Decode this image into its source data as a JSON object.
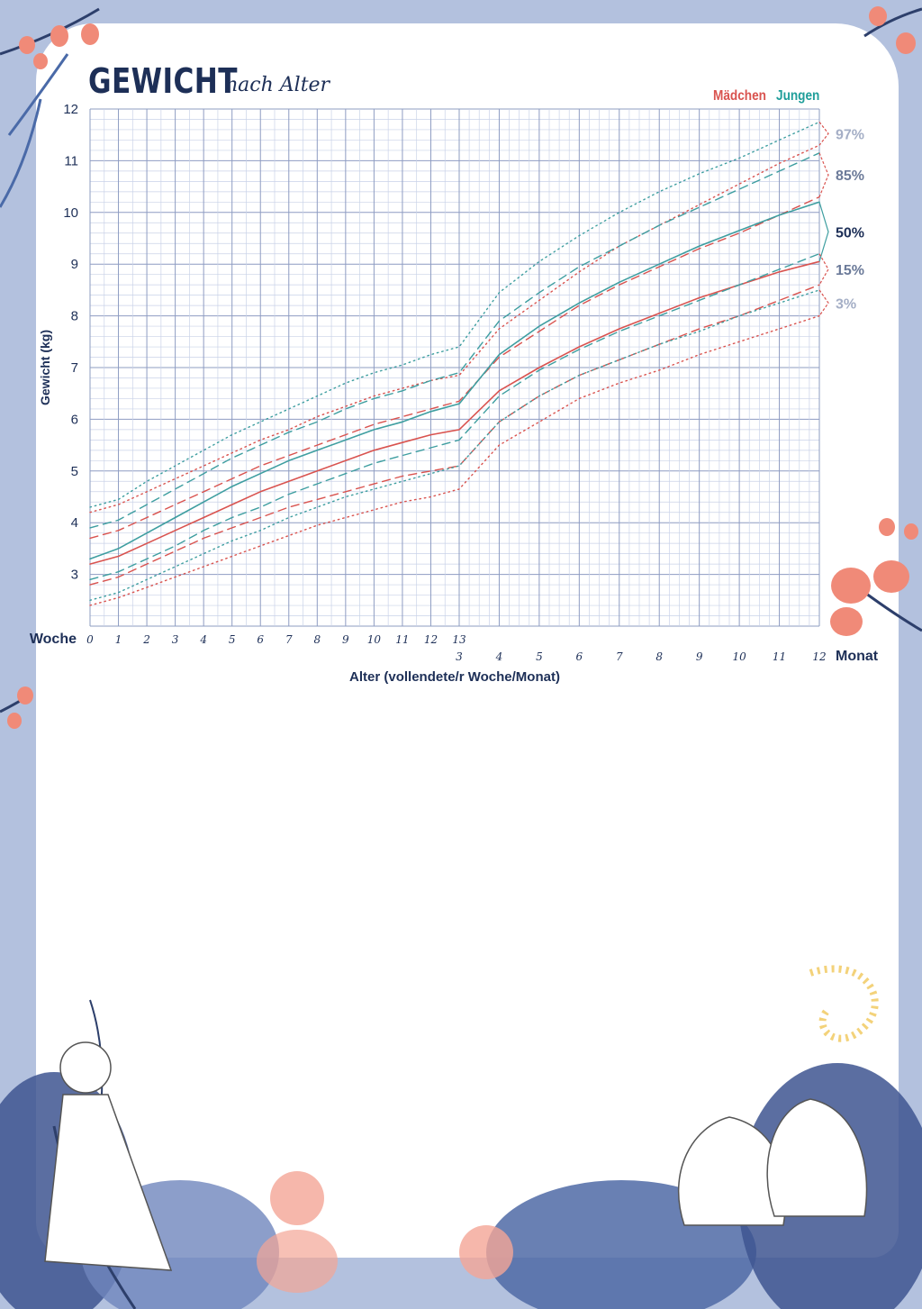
{
  "title": {
    "main": "GEWICHT",
    "sub": "nach Alter"
  },
  "legend": {
    "girls": "Mädchen",
    "boys": "Jungen"
  },
  "colors": {
    "girls": "#d9534f",
    "boys": "#3e9ea0",
    "ink": "#1d2f57",
    "grid": "#9aa8cc",
    "frame": "#b3c1de"
  },
  "chart_data": {
    "type": "line",
    "ylabel": "Gewicht (kg)",
    "xlabel": "Alter (vollendete/r Woche/Monat)",
    "ylim": [
      2,
      12
    ],
    "y_ticks": [
      3,
      4,
      5,
      6,
      7,
      8,
      9,
      10,
      11,
      12
    ],
    "weeks_label": "Woche",
    "week_ticks": [
      "0",
      "1",
      "2",
      "3",
      "4",
      "5",
      "6",
      "7",
      "8",
      "9",
      "10",
      "11",
      "12",
      "13"
    ],
    "months_label": "Monat",
    "month_ticks": [
      "3",
      "4",
      "5",
      "6",
      "7",
      "8",
      "9",
      "10",
      "11",
      "12"
    ],
    "percentile_labels": [
      "97%",
      "85%",
      "50%",
      "15%",
      "3%"
    ],
    "x_age_months": [
      0,
      0.23,
      0.46,
      0.69,
      0.92,
      1.15,
      1.38,
      1.61,
      1.84,
      2.07,
      2.3,
      2.53,
      2.76,
      2.99,
      4,
      5,
      6,
      7,
      8,
      9,
      10,
      11,
      12
    ],
    "series": [
      {
        "name": "Mädchen",
        "percentile": "3%",
        "style": "dotted",
        "values": [
          2.4,
          2.55,
          2.75,
          2.95,
          3.15,
          3.35,
          3.55,
          3.75,
          3.95,
          4.1,
          4.25,
          4.4,
          4.5,
          4.65,
          5.5,
          5.95,
          6.4,
          6.7,
          6.95,
          7.25,
          7.5,
          7.75,
          8.0
        ]
      },
      {
        "name": "Mädchen",
        "percentile": "15%",
        "style": "dashed",
        "values": [
          2.8,
          2.95,
          3.2,
          3.45,
          3.7,
          3.9,
          4.1,
          4.3,
          4.45,
          4.6,
          4.75,
          4.9,
          5.0,
          5.1,
          5.95,
          6.45,
          6.85,
          7.15,
          7.45,
          7.75,
          8.0,
          8.3,
          8.6
        ]
      },
      {
        "name": "Mädchen",
        "percentile": "50%",
        "style": "solid",
        "values": [
          3.2,
          3.35,
          3.6,
          3.85,
          4.1,
          4.35,
          4.6,
          4.8,
          5.0,
          5.2,
          5.4,
          5.55,
          5.7,
          5.8,
          6.55,
          7.0,
          7.4,
          7.75,
          8.05,
          8.35,
          8.6,
          8.85,
          9.05
        ]
      },
      {
        "name": "Mädchen",
        "percentile": "85%",
        "style": "dashed",
        "values": [
          3.7,
          3.85,
          4.1,
          4.35,
          4.6,
          4.85,
          5.1,
          5.3,
          5.5,
          5.7,
          5.9,
          6.05,
          6.2,
          6.35,
          7.2,
          7.7,
          8.2,
          8.6,
          8.95,
          9.3,
          9.6,
          9.95,
          10.3
        ]
      },
      {
        "name": "Mädchen",
        "percentile": "97%",
        "style": "dotted",
        "values": [
          4.2,
          4.35,
          4.6,
          4.85,
          5.1,
          5.35,
          5.6,
          5.8,
          6.05,
          6.25,
          6.45,
          6.6,
          6.75,
          6.85,
          7.75,
          8.3,
          8.85,
          9.35,
          9.75,
          10.15,
          10.55,
          10.95,
          11.3
        ]
      },
      {
        "name": "Jungen",
        "percentile": "3%",
        "style": "dotted",
        "values": [
          2.5,
          2.65,
          2.9,
          3.15,
          3.4,
          3.65,
          3.85,
          4.1,
          4.3,
          4.5,
          4.65,
          4.8,
          4.95,
          5.1,
          5.95,
          6.45,
          6.85,
          7.15,
          7.45,
          7.7,
          8.0,
          8.25,
          8.5
        ]
      },
      {
        "name": "Jungen",
        "percentile": "15%",
        "style": "dashed",
        "values": [
          2.9,
          3.05,
          3.3,
          3.55,
          3.85,
          4.1,
          4.3,
          4.55,
          4.75,
          4.95,
          5.15,
          5.3,
          5.45,
          5.6,
          6.45,
          6.95,
          7.35,
          7.7,
          8.0,
          8.3,
          8.6,
          8.9,
          9.2
        ]
      },
      {
        "name": "Jungen",
        "percentile": "50%",
        "style": "solid",
        "values": [
          3.3,
          3.5,
          3.8,
          4.1,
          4.4,
          4.7,
          4.95,
          5.2,
          5.4,
          5.6,
          5.8,
          5.95,
          6.15,
          6.3,
          7.25,
          7.8,
          8.25,
          8.65,
          9.0,
          9.35,
          9.65,
          9.95,
          10.2
        ]
      },
      {
        "name": "Jungen",
        "percentile": "85%",
        "style": "dashed",
        "values": [
          3.9,
          4.05,
          4.35,
          4.65,
          4.95,
          5.25,
          5.5,
          5.75,
          5.95,
          6.2,
          6.4,
          6.55,
          6.75,
          6.9,
          7.9,
          8.45,
          8.95,
          9.35,
          9.75,
          10.1,
          10.45,
          10.8,
          11.15
        ]
      },
      {
        "name": "Jungen",
        "percentile": "97%",
        "style": "dotted",
        "values": [
          4.3,
          4.45,
          4.8,
          5.1,
          5.4,
          5.7,
          5.95,
          6.2,
          6.45,
          6.7,
          6.9,
          7.05,
          7.25,
          7.4,
          8.45,
          9.05,
          9.55,
          10.0,
          10.4,
          10.75,
          11.05,
          11.4,
          11.75
        ]
      }
    ]
  }
}
